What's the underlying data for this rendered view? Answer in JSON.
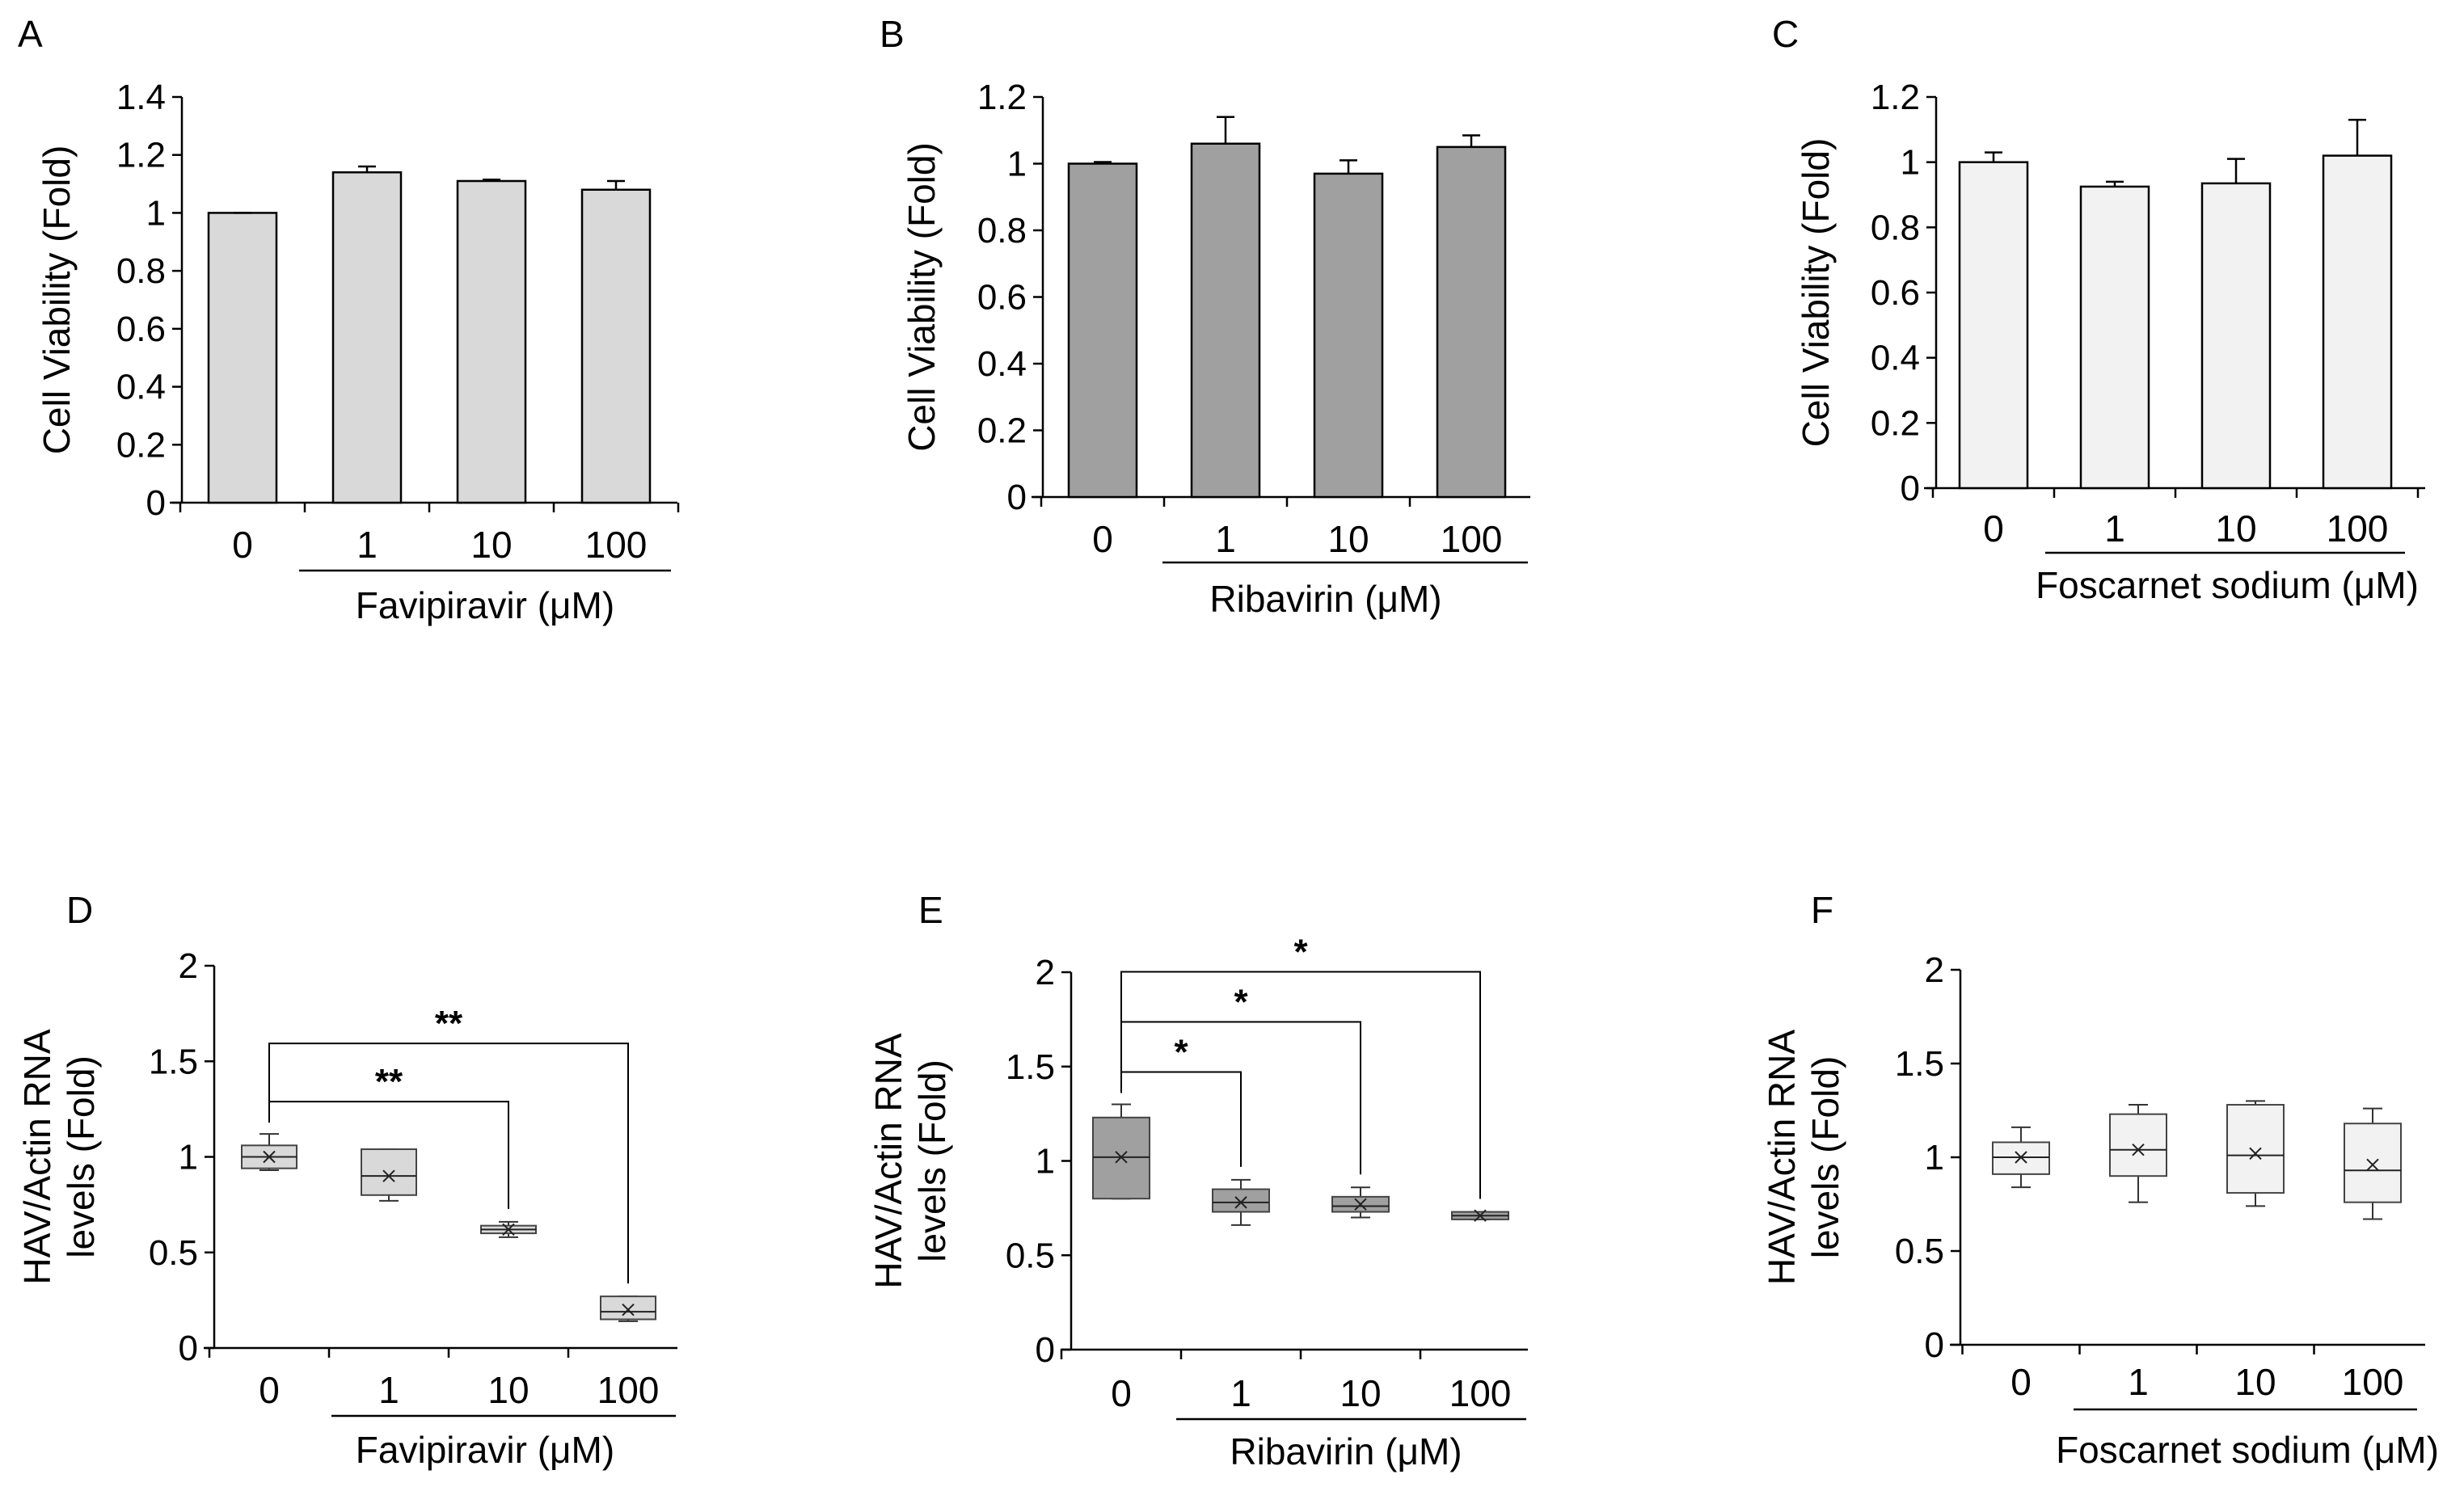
{
  "chart_data": [
    {
      "panel": "A",
      "type": "bar",
      "categories": [
        "0",
        "1",
        "10",
        "100"
      ],
      "values": [
        1.0,
        1.14,
        1.11,
        1.08
      ],
      "errors": [
        0.0,
        0.02,
        0.005,
        0.03
      ],
      "ylabel": "Cell Viability (Fold)",
      "xlabel": "Favipiravir (μM)",
      "ylim": [
        0,
        1.4
      ],
      "yticks": [
        "0",
        "0.2",
        "0.4",
        "0.6",
        "0.8",
        "1",
        "1.2",
        "1.4"
      ],
      "color": "#d9d9d9"
    },
    {
      "panel": "B",
      "type": "bar",
      "categories": [
        "0",
        "1",
        "10",
        "100"
      ],
      "values": [
        1.0,
        1.06,
        0.97,
        1.05
      ],
      "errors": [
        0.005,
        0.08,
        0.04,
        0.035
      ],
      "ylabel": "Cell Viability (Fold)",
      "xlabel": "Ribavirin (μM)",
      "ylim": [
        0,
        1.2
      ],
      "yticks": [
        "0",
        "0.2",
        "0.4",
        "0.6",
        "0.8",
        "1",
        "1.2"
      ],
      "color": "#a0a0a0"
    },
    {
      "panel": "C",
      "type": "bar",
      "categories": [
        "0",
        "1",
        "10",
        "100"
      ],
      "values": [
        1.0,
        0.925,
        0.935,
        1.02
      ],
      "errors": [
        0.03,
        0.015,
        0.075,
        0.11
      ],
      "ylabel": "Cell Viability (Fold)",
      "xlabel": "Foscarnet sodium (μM)",
      "ylim": [
        0,
        1.2
      ],
      "yticks": [
        "0",
        "0.2",
        "0.4",
        "0.6",
        "0.8",
        "1",
        "1.2"
      ],
      "color": "#f2f2f2"
    },
    {
      "panel": "D",
      "type": "box",
      "categories": [
        "0",
        "1",
        "10",
        "100"
      ],
      "boxes": [
        {
          "min": 0.93,
          "q1": 0.94,
          "median": 1.0,
          "q3": 1.06,
          "max": 1.12,
          "mean": 1.0
        },
        {
          "min": 0.77,
          "q1": 0.8,
          "median": 0.9,
          "q3": 1.04,
          "max": 1.04,
          "mean": 0.9
        },
        {
          "min": 0.58,
          "q1": 0.6,
          "median": 0.62,
          "q3": 0.64,
          "max": 0.66,
          "mean": 0.62
        },
        {
          "min": 0.14,
          "q1": 0.15,
          "median": 0.19,
          "q3": 0.27,
          "max": 0.27,
          "mean": 0.2
        }
      ],
      "significance": [
        {
          "from": "0",
          "to": "10",
          "label": "**"
        },
        {
          "from": "0",
          "to": "100",
          "label": "**"
        }
      ],
      "ylabel": "HAV/Actin  RNA\nlevels (Fold)",
      "ylabel_lines": [
        "HAV/Actin  RNA",
        "levels (Fold)"
      ],
      "xlabel": "Favipiravir (μM)",
      "ylim": [
        0,
        2
      ],
      "yticks": [
        "0",
        "0.5",
        "1",
        "1.5",
        "2"
      ],
      "color": "#d9d9d9"
    },
    {
      "panel": "E",
      "type": "box",
      "categories": [
        "0",
        "1",
        "10",
        "100"
      ],
      "boxes": [
        {
          "min": 0.8,
          "q1": 0.8,
          "median": 1.02,
          "q3": 1.23,
          "max": 1.3,
          "mean": 1.02
        },
        {
          "min": 0.66,
          "q1": 0.73,
          "median": 0.78,
          "q3": 0.85,
          "max": 0.9,
          "mean": 0.78
        },
        {
          "min": 0.7,
          "q1": 0.73,
          "median": 0.76,
          "q3": 0.81,
          "max": 0.86,
          "mean": 0.77
        },
        {
          "min": 0.69,
          "q1": 0.69,
          "median": 0.71,
          "q3": 0.73,
          "max": 0.73,
          "mean": 0.71
        }
      ],
      "significance": [
        {
          "from": "0",
          "to": "1",
          "label": "*"
        },
        {
          "from": "0",
          "to": "10",
          "label": "*"
        },
        {
          "from": "0",
          "to": "100",
          "label": "*"
        }
      ],
      "ylabel": "HAV/Actin  RNA\nlevels (Fold)",
      "ylabel_lines": [
        "HAV/Actin  RNA",
        "levels (Fold)"
      ],
      "xlabel": "Ribavirin (μM)",
      "ylim": [
        0,
        2
      ],
      "yticks": [
        "0",
        "0.5",
        "1",
        "1.5",
        "2"
      ],
      "color": "#a0a0a0"
    },
    {
      "panel": "F",
      "type": "box",
      "categories": [
        "0",
        "1",
        "10",
        "100"
      ],
      "boxes": [
        {
          "min": 0.84,
          "q1": 0.91,
          "median": 1.0,
          "q3": 1.08,
          "max": 1.16,
          "mean": 1.0
        },
        {
          "min": 0.76,
          "q1": 0.9,
          "median": 1.04,
          "q3": 1.23,
          "max": 1.28,
          "mean": 1.04
        },
        {
          "min": 0.74,
          "q1": 0.81,
          "median": 1.01,
          "q3": 1.28,
          "max": 1.3,
          "mean": 1.02
        },
        {
          "min": 0.67,
          "q1": 0.76,
          "median": 0.93,
          "q3": 1.18,
          "max": 1.26,
          "mean": 0.96
        }
      ],
      "significance": [],
      "ylabel": "HAV/Actin  RNA\nlevels (Fold)",
      "ylabel_lines": [
        "HAV/Actin  RNA",
        "levels (Fold)"
      ],
      "xlabel": "Foscarnet sodium (μM)",
      "ylim": [
        0,
        2
      ],
      "yticks": [
        "0",
        "0.5",
        "1",
        "1.5",
        "2"
      ],
      "color": "#f2f2f2"
    }
  ]
}
